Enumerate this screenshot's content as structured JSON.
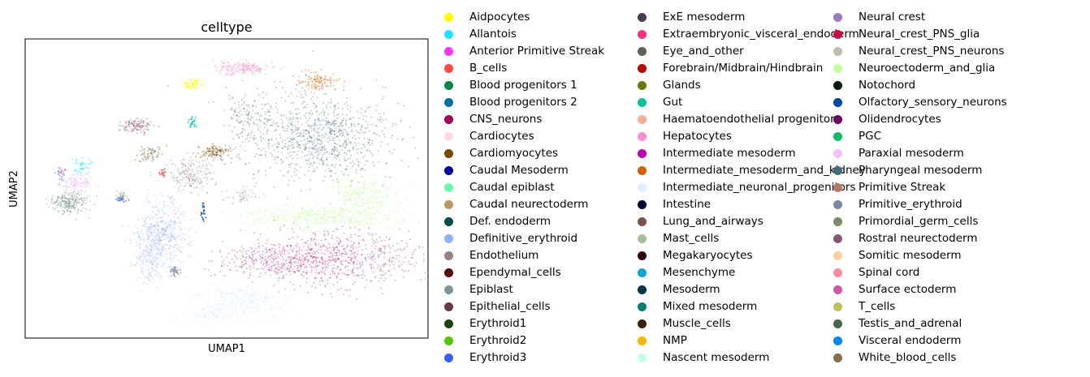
{
  "chart_data": {
    "type": "scatter",
    "title": "celltype",
    "xlabel": "UMAP1",
    "ylabel": "UMAP2",
    "grid": false,
    "legend_placement": "right, 3 columns",
    "series": [
      {
        "name": "Aidpocytes",
        "color": "#ffff00"
      },
      {
        "name": "Allantois",
        "color": "#1ce6ff"
      },
      {
        "name": "Anterior Primitive Streak",
        "color": "#ff34ff"
      },
      {
        "name": "B_cells",
        "color": "#ff4a46"
      },
      {
        "name": "Blood progenitors 1",
        "color": "#008941"
      },
      {
        "name": "Blood progenitors 2",
        "color": "#006fa6"
      },
      {
        "name": "CNS_neurons",
        "color": "#a30059"
      },
      {
        "name": "Cardiocytes",
        "color": "#ffdbe5"
      },
      {
        "name": "Cardiomyocytes",
        "color": "#7a4900"
      },
      {
        "name": "Caudal Mesoderm",
        "color": "#0000a6"
      },
      {
        "name": "Caudal epiblast",
        "color": "#63ffac"
      },
      {
        "name": "Caudal neurectoderm",
        "color": "#b79762"
      },
      {
        "name": "Def. endoderm",
        "color": "#004d43"
      },
      {
        "name": "Definitive_erythroid",
        "color": "#8fb0ff"
      },
      {
        "name": "Endothelium",
        "color": "#997d87"
      },
      {
        "name": "Ependymal_cells",
        "color": "#5a0007"
      },
      {
        "name": "Epiblast",
        "color": "#809693"
      },
      {
        "name": "Epithelial_cells",
        "color": "#6a3a4c"
      },
      {
        "name": "Erythroid1",
        "color": "#1b4400"
      },
      {
        "name": "Erythroid2",
        "color": "#4fc601"
      },
      {
        "name": "Erythroid3",
        "color": "#3b5dff"
      },
      {
        "name": "ExE mesoderm",
        "color": "#4a3b53"
      },
      {
        "name": "Extraembryonic_visceral_endoderm",
        "color": "#ff2f80"
      },
      {
        "name": "Eye_and_other",
        "color": "#61615a"
      },
      {
        "name": "Forebrain/Midbrain/Hindbrain",
        "color": "#ba0900"
      },
      {
        "name": "Glands",
        "color": "#6b7900"
      },
      {
        "name": "Gut",
        "color": "#00c2a0"
      },
      {
        "name": "Haematoendothelial progenitors",
        "color": "#ffaa92"
      },
      {
        "name": "Hepatocytes",
        "color": "#ff90c9"
      },
      {
        "name": "Intermediate mesoderm",
        "color": "#b903aa"
      },
      {
        "name": "Intermediate_mesoderm_and_kidney",
        "color": "#d16100"
      },
      {
        "name": "Intermediate_neuronal_progenitors",
        "color": "#ddefff"
      },
      {
        "name": "Intestine",
        "color": "#000035"
      },
      {
        "name": "Lung_and_airways",
        "color": "#7b4f4b"
      },
      {
        "name": "Mast_cells",
        "color": "#a1c299"
      },
      {
        "name": "Megakaryocytes",
        "color": "#300018"
      },
      {
        "name": "Mesenchyme",
        "color": "#0aa6d8"
      },
      {
        "name": "Mesoderm",
        "color": "#013349"
      },
      {
        "name": "Mixed mesoderm",
        "color": "#00846f"
      },
      {
        "name": "Muscle_cells",
        "color": "#372101"
      },
      {
        "name": "NMP",
        "color": "#ffb500"
      },
      {
        "name": "Nascent mesoderm",
        "color": "#c2ffed"
      },
      {
        "name": "Neural crest",
        "color": "#a079bf"
      },
      {
        "name": "Neural_crest_PNS_glia",
        "color": "#cc0744"
      },
      {
        "name": "Neural_crest_PNS_neurons",
        "color": "#c0b9b2"
      },
      {
        "name": "Neuroectoderm_and_glia",
        "color": "#c2ff99"
      },
      {
        "name": "Notochord",
        "color": "#001e09"
      },
      {
        "name": "Olfactory_sensory_neurons",
        "color": "#00489c"
      },
      {
        "name": "Olidendrocytes",
        "color": "#6f0062"
      },
      {
        "name": "PGC",
        "color": "#0cbd66"
      },
      {
        "name": "Paraxial mesoderm",
        "color": "#eec3ff"
      },
      {
        "name": "Pharyngeal mesoderm",
        "color": "#456d75"
      },
      {
        "name": "Primitive Streak",
        "color": "#b77b68"
      },
      {
        "name": "Primitive_erythroid",
        "color": "#7a87a1"
      },
      {
        "name": "Primordial_germ_cells",
        "color": "#788d66"
      },
      {
        "name": "Rostral neurectoderm",
        "color": "#885578"
      },
      {
        "name": "Somitic mesoderm",
        "color": "#fad09f"
      },
      {
        "name": "Spinal cord",
        "color": "#ff8a9a"
      },
      {
        "name": "Surface ectoderm",
        "color": "#d157a0"
      },
      {
        "name": "T_cells",
        "color": "#bec459"
      },
      {
        "name": "Testis_and_adrenal",
        "color": "#456648"
      },
      {
        "name": "Visceral endoderm",
        "color": "#0086ed"
      },
      {
        "name": "White_blood_cells",
        "color": "#886f4c"
      }
    ]
  }
}
